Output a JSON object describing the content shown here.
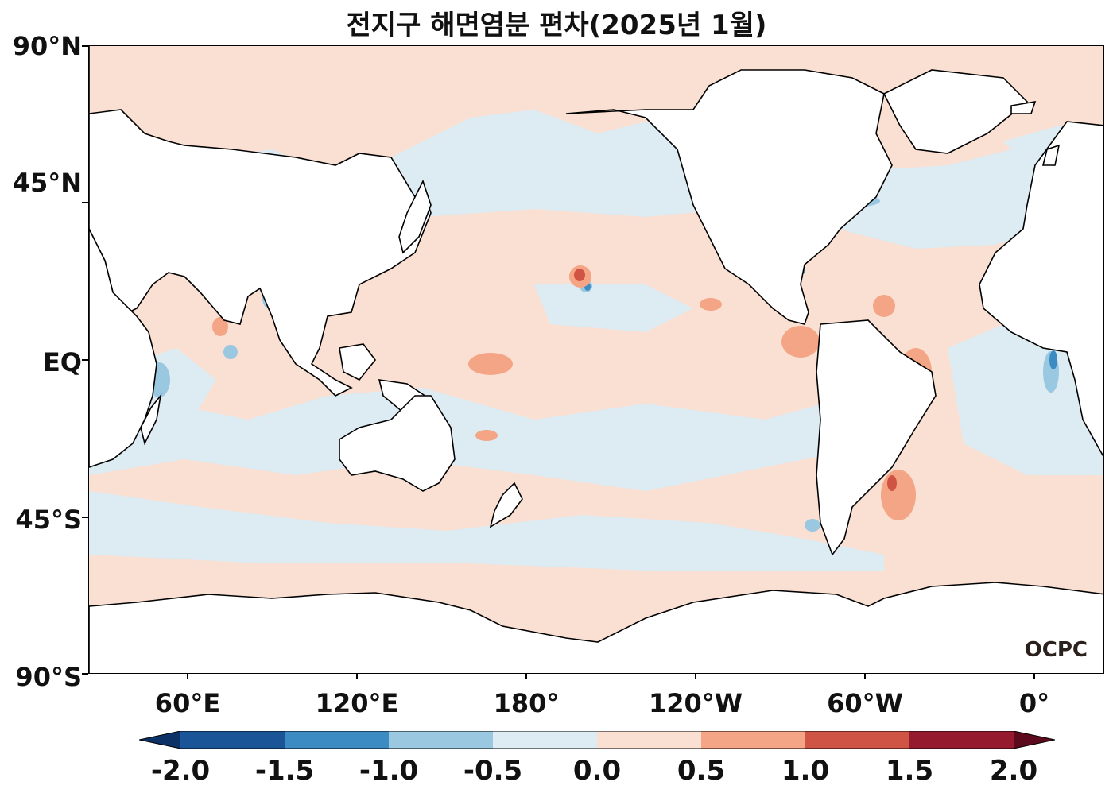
{
  "title": "전지구 해면염분 편차(2025년 1월)",
  "lat_ticks": [
    "90°N",
    "45°N",
    "EQ",
    "45°S",
    "90°S"
  ],
  "lon_ticks": [
    "60°E",
    "120°E",
    "180°",
    "120°W",
    "60°W",
    "0°"
  ],
  "logo": "OCPC",
  "colorbar": {
    "levels": [
      -2.0,
      -1.5,
      -1.0,
      -0.5,
      0.0,
      0.5,
      1.0,
      1.5,
      2.0
    ],
    "labels": [
      "-2.0",
      "-1.5",
      "-1.0",
      "-0.5",
      "0.0",
      "0.5",
      "1.0",
      "1.5",
      "2.0"
    ],
    "colors": [
      "#0b3166",
      "#1a5697",
      "#3d8bc3",
      "#9ac8e0",
      "#ddebf3",
      "#fadfd3",
      "#f4a585",
      "#d05444",
      "#961a2d",
      "#5e0a1d"
    ]
  },
  "map": {
    "projection": "PlateCarree, central longitude 155°W (205°E)",
    "longitude_range": "25°E–25°E (360°)",
    "latitude_range": "90°S–90°N",
    "land_color": "#ffffff",
    "coastline_color": "#000000",
    "background_anomaly_color": "#fadfd3"
  }
}
